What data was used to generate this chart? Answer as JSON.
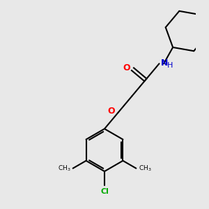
{
  "background_color": "#e8e8e8",
  "bond_color": "#000000",
  "bond_width": 1.5,
  "O_color": "#ff0000",
  "N_color": "#0000cd",
  "Cl_color": "#00aa00",
  "figsize": [
    3.0,
    3.0
  ],
  "dpi": 100,
  "xlim": [
    -1.2,
    1.2
  ],
  "ylim": [
    -1.35,
    1.35
  ]
}
